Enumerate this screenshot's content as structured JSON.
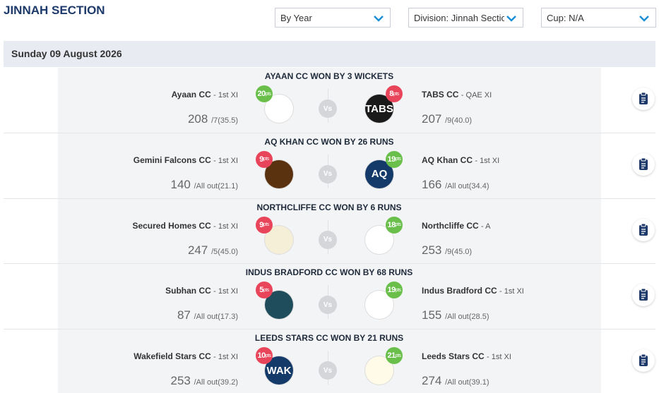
{
  "header": {
    "title": "JINNAH SECTION"
  },
  "filters": [
    "By Year",
    "Division: Jinnah Section",
    "Cup: N/A"
  ],
  "date": "Sunday 09 August 2026",
  "labels": {
    "points_unit": "pts",
    "versus": "Vs"
  },
  "matches": [
    {
      "result": "AYAAN CC WON BY 3 WICKETS",
      "home": {
        "team": "Ayaan CC",
        "xi": "- 1st XI",
        "score": 208,
        "wickets": "/7",
        "overs": "(35.5)",
        "points": 20,
        "logo_color": "#ffffff",
        "logo_text": ""
      },
      "away": {
        "team": "TABS CC",
        "xi": "- QAE XI",
        "score": 207,
        "wickets": "/9",
        "overs": "(40.0)",
        "points": 8,
        "logo_color": "#1a1a1a",
        "logo_text": "TABS"
      }
    },
    {
      "result": "AQ KHAN CC WON BY 26 RUNS",
      "home": {
        "team": "Gemini Falcons CC",
        "xi": "- 1st XI",
        "score": 140,
        "wickets": "/All out",
        "overs": "(21.1)",
        "points": 9,
        "logo_color": "#5a3210",
        "logo_text": ""
      },
      "away": {
        "team": "AQ Khan CC",
        "xi": "- 1st XI",
        "score": 166,
        "wickets": "/All out",
        "overs": "(34.4)",
        "points": 19,
        "logo_color": "#143a6a",
        "logo_text": "AQ"
      }
    },
    {
      "result": "NORTHCLIFFE CC WON BY 6 RUNS",
      "home": {
        "team": "Secured Homes CC",
        "xi": "- 1st XI",
        "score": 247,
        "wickets": "/5",
        "overs": "(45.0)",
        "points": 9,
        "logo_color": "#f6efd8",
        "logo_text": ""
      },
      "away": {
        "team": "Northcliffe CC",
        "xi": "- A",
        "score": 253,
        "wickets": "/9",
        "overs": "(45.0)",
        "points": 18,
        "logo_color": "#ffffff",
        "logo_text": ""
      }
    },
    {
      "result": "INDUS BRADFORD CC WON BY 68 RUNS",
      "home": {
        "team": "Subhan CC",
        "xi": "- 1st XI",
        "score": 87,
        "wickets": "/All out",
        "overs": "(17.3)",
        "points": 5,
        "logo_color": "#1f4d5c",
        "logo_text": ""
      },
      "away": {
        "team": "Indus Bradford CC",
        "xi": "- 1st XI",
        "score": 155,
        "wickets": "/All out",
        "overs": "(28.5)",
        "points": 19,
        "logo_color": "#ffffff",
        "logo_text": ""
      }
    },
    {
      "result": "LEEDS STARS CC WON BY 21 RUNS",
      "home": {
        "team": "Wakefield Stars CC",
        "xi": "- 1st XI",
        "score": 253,
        "wickets": "/All out",
        "overs": "(39.2)",
        "points": 10,
        "logo_color": "#143a6a",
        "logo_text": "WAK"
      },
      "away": {
        "team": "Leeds Stars CC",
        "xi": "- 1st XI",
        "score": 274,
        "wickets": "/All out",
        "overs": "(39.1)",
        "points": 21,
        "logo_color": "#fffbe8",
        "logo_text": ""
      }
    }
  ]
}
